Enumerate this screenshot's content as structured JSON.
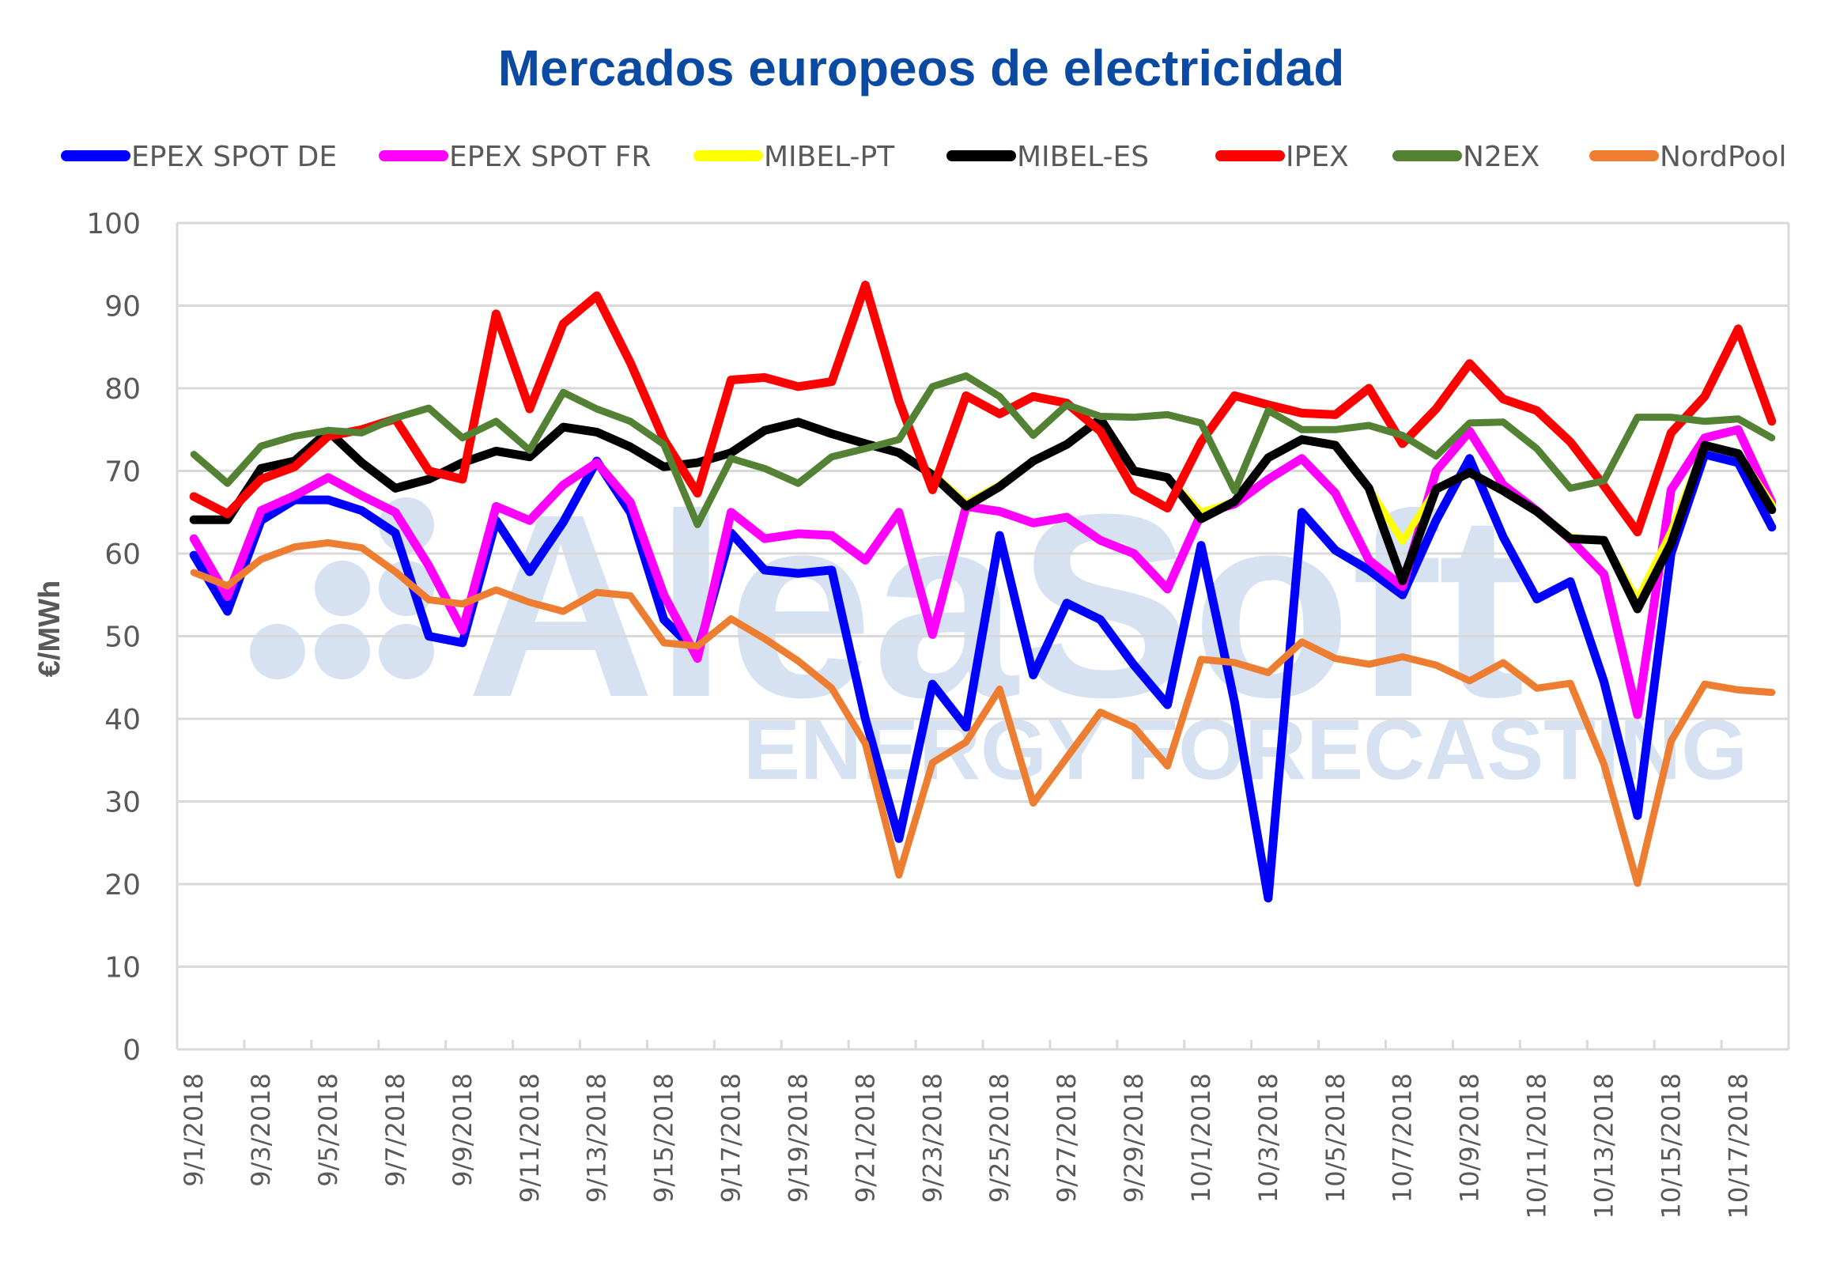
{
  "chart_data": {
    "type": "line",
    "title": "Mercados europeos de electricidad",
    "xlabel": "",
    "ylabel": "€/MWh",
    "ylim": [
      0,
      100
    ],
    "yticks": [
      0,
      10,
      20,
      30,
      40,
      50,
      60,
      70,
      80,
      90,
      100
    ],
    "grid": true,
    "legend_position": "top",
    "watermark": {
      "brand": "AleaSoft",
      "tagline": "ENERGY FORECASTING"
    },
    "x": [
      "9/1/2018",
      "9/2/2018",
      "9/3/2018",
      "9/4/2018",
      "9/5/2018",
      "9/6/2018",
      "9/7/2018",
      "9/8/2018",
      "9/9/2018",
      "9/10/2018",
      "9/11/2018",
      "9/12/2018",
      "9/13/2018",
      "9/14/2018",
      "9/15/2018",
      "9/16/2018",
      "9/17/2018",
      "9/18/2018",
      "9/19/2018",
      "9/20/2018",
      "9/21/2018",
      "9/22/2018",
      "9/23/2018",
      "9/24/2018",
      "9/25/2018",
      "9/26/2018",
      "9/27/2018",
      "9/28/2018",
      "9/29/2018",
      "9/30/2018",
      "10/1/2018",
      "10/2/2018",
      "10/3/2018",
      "10/4/2018",
      "10/5/2018",
      "10/6/2018",
      "10/7/2018",
      "10/8/2018",
      "10/9/2018",
      "10/10/2018",
      "10/11/2018",
      "10/12/2018",
      "10/13/2018",
      "10/14/2018",
      "10/15/2018",
      "10/16/2018",
      "10/17/2018",
      "10/18/2018"
    ],
    "tick_labels": [
      "9/1/2018",
      "9/3/2018",
      "9/5/2018",
      "9/7/2018",
      "9/9/2018",
      "9/11/2018",
      "9/13/2018",
      "9/15/2018",
      "9/17/2018",
      "9/19/2018",
      "9/21/2018",
      "9/23/2018",
      "9/25/2018",
      "9/27/2018",
      "9/29/2018",
      "10/1/2018",
      "10/3/2018",
      "10/5/2018",
      "10/7/2018",
      "10/9/2018",
      "10/11/2018",
      "10/13/2018",
      "10/15/2018",
      "10/17/2018"
    ],
    "series": [
      {
        "name": "EPEX SPOT DE",
        "color": "#0000ff",
        "values": [
          59.8,
          53,
          64,
          66.5,
          66.5,
          65.2,
          62.5,
          50,
          49.2,
          64,
          57.8,
          63.8,
          71.2,
          65,
          52,
          48,
          62.5,
          58,
          57.6,
          58,
          40,
          25.5,
          44.2,
          39,
          62.2,
          45.3,
          54,
          52,
          46.5,
          41.7,
          61,
          42,
          18.3,
          65,
          60.4,
          58,
          55,
          64,
          71.5,
          62,
          54.5,
          56.6,
          44.5,
          28.3,
          60,
          72,
          71,
          63.2
        ]
      },
      {
        "name": "EPEX SPOT FR",
        "color": "#ff00ff",
        "values": [
          61.8,
          54.8,
          65.2,
          67,
          69.2,
          67,
          65,
          58.5,
          50.7,
          65.7,
          64,
          68.3,
          71,
          66.2,
          55,
          47.3,
          65,
          61.8,
          62.4,
          62.2,
          59.2,
          65,
          50.2,
          65.7,
          65.1,
          63.7,
          64.4,
          61.6,
          60,
          55.7,
          64.8,
          66,
          69,
          71.5,
          67.3,
          59.2,
          56,
          70,
          74.8,
          68.3,
          65.2,
          61.7,
          57.5,
          40.5,
          67.7,
          74,
          75,
          66.2
        ]
      },
      {
        "name": "MIBEL-PT",
        "color": "#ffff00",
        "values": [
          64.1,
          64.1,
          70.3,
          71.2,
          74.8,
          71,
          67.9,
          69,
          71,
          72.4,
          71.7,
          75.3,
          74.7,
          72.9,
          70.5,
          71,
          72.2,
          74.9,
          75.9,
          74.5,
          73.3,
          72.2,
          69.7,
          66.1,
          68.3,
          71.2,
          73.2,
          76.3,
          70,
          69.2,
          65,
          66.3,
          71.6,
          73.8,
          73.1,
          67.9,
          61.5,
          67.8,
          69.8,
          67.6,
          65.1,
          62,
          61.5,
          54.4,
          62.7,
          73.1,
          72.1,
          66
        ]
      },
      {
        "name": "MIBEL-ES",
        "color": "#000000",
        "values": [
          64.1,
          64.1,
          70.3,
          71.2,
          74.8,
          71,
          67.9,
          69,
          71,
          72.4,
          71.7,
          75.3,
          74.7,
          72.9,
          70.5,
          71,
          72.2,
          74.9,
          75.9,
          74.5,
          73.3,
          72.2,
          69.5,
          65.7,
          68.1,
          71.2,
          73.2,
          76.3,
          70,
          69.2,
          64.2,
          66.3,
          71.6,
          73.8,
          73.1,
          67.9,
          56.7,
          67.8,
          69.8,
          67.6,
          65.1,
          61.8,
          61.6,
          53.3,
          61.2,
          73.1,
          72.1,
          65.3
        ]
      },
      {
        "name": "IPEX",
        "color": "#ff0000",
        "values": [
          66.9,
          64.8,
          69,
          70.5,
          74.2,
          75,
          76.3,
          70,
          69,
          89,
          77.5,
          87.8,
          91.2,
          83.1,
          73.8,
          67.3,
          81,
          81.3,
          80.2,
          80.8,
          92.5,
          78.5,
          67.7,
          79.1,
          76.9,
          79,
          78.2,
          74.8,
          67.7,
          65.5,
          73.5,
          79.1,
          78,
          77,
          76.8,
          80,
          73.3,
          77.5,
          83,
          78.7,
          77.3,
          73.5,
          68.2,
          62.6,
          74.6,
          79,
          87.2,
          76
        ]
      },
      {
        "name": "N2EX",
        "color": "#548235",
        "values": [
          72,
          68.5,
          73,
          74.2,
          74.9,
          74.6,
          76.4,
          77.6,
          74,
          76,
          72.5,
          79.5,
          77.5,
          76,
          73.2,
          63.5,
          71.5,
          70.3,
          68.5,
          71.7,
          72.7,
          73.8,
          80.2,
          81.5,
          79,
          74.3,
          78,
          76.6,
          76.5,
          76.8,
          75.8,
          67.6,
          77.3,
          75,
          75,
          75.5,
          74.3,
          71.8,
          75.8,
          75.9,
          72.7,
          67.9,
          68.8,
          76.5,
          76.5,
          76,
          76.3,
          74
        ]
      },
      {
        "name": "NordPool",
        "color": "#ed7d31",
        "values": [
          57.7,
          56.1,
          59.3,
          60.8,
          61.3,
          60.7,
          57.8,
          54.4,
          53.9,
          55.6,
          54.1,
          53,
          55.3,
          54.9,
          49.2,
          48.8,
          52.1,
          49.7,
          47,
          43.7,
          37,
          21.1,
          34.7,
          37.2,
          43.6,
          29.8,
          35.3,
          40.8,
          39,
          34.3,
          47.2,
          46.8,
          45.6,
          49.3,
          47.3,
          46.6,
          47.5,
          46.5,
          44.6,
          46.8,
          43.7,
          44.3,
          34.5,
          20.1,
          37.3,
          44.2,
          43.5,
          43.2
        ]
      }
    ]
  }
}
